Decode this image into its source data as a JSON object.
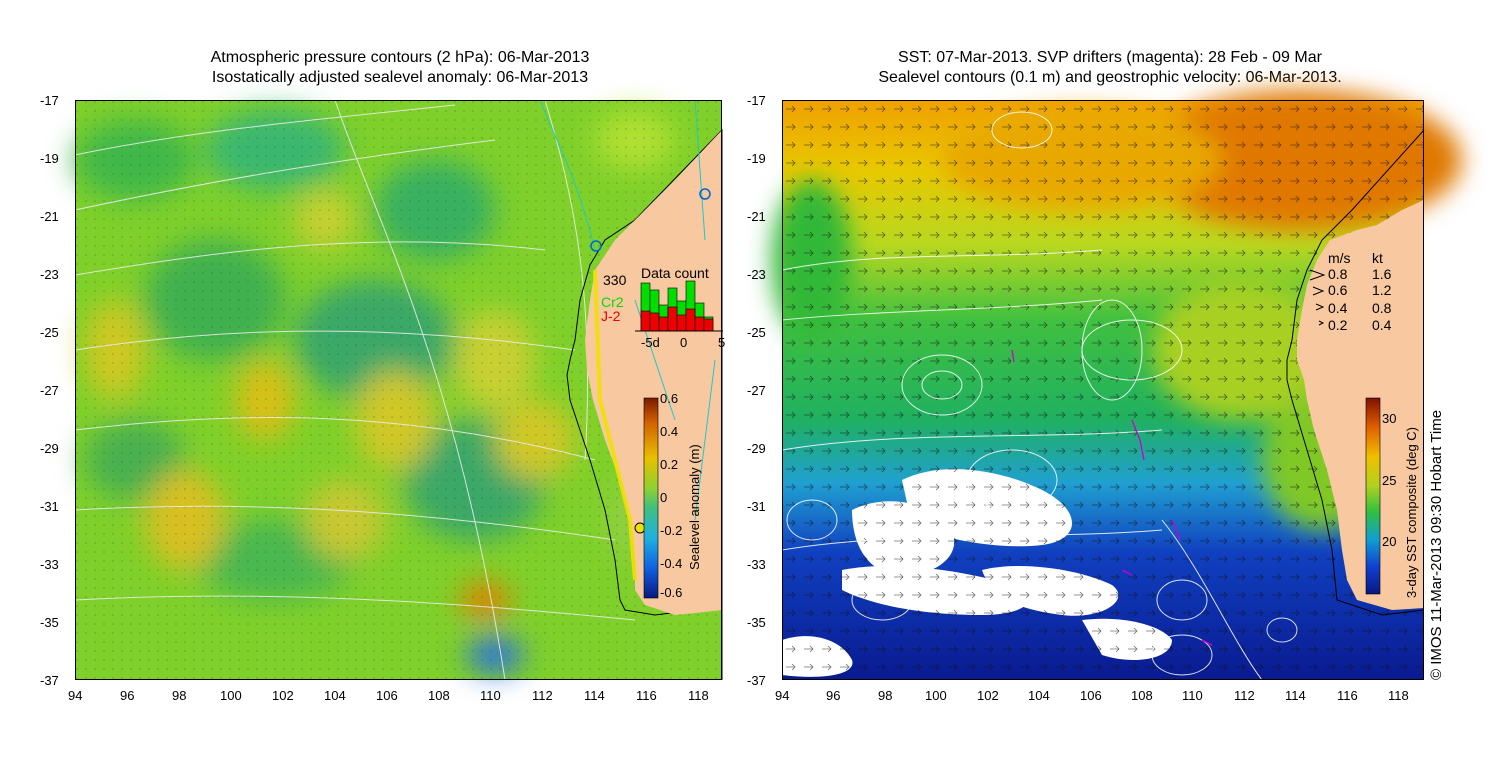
{
  "left_map": {
    "title_line1": "Atmospheric pressure contours (2 hPa): 06-Mar-2013",
    "title_line2": "Isostatically adjusted sealevel anomaly: 06-Mar-2013",
    "count_value": "330",
    "data_count_title": "Data count",
    "sat_cr2": "Cr2",
    "sat_j2": "J-2",
    "count_ticks": [
      "-5d",
      "0",
      "5"
    ],
    "colorbar": {
      "label": "Sealevel anomaly (m)",
      "ticks": [
        "0.6",
        "0.4",
        "0.2",
        "0",
        "-0.2",
        "-0.4",
        "-0.6"
      ]
    },
    "colors": {
      "land": "#f8c8a0",
      "sea_mid": "#7ed321",
      "sea_high": "#e8a800",
      "sea_low": "#1e90ff",
      "contour": "#e8e8e8",
      "cr2": "#00dd00",
      "j2": "#ee0000"
    }
  },
  "right_map": {
    "title_line1": "SST: 07-Mar-2013. SVP drifters (magenta): 28 Feb - 09 Mar",
    "title_line2": "Sealevel contours (0.1 m) and geostrophic velocity: 06-Mar-2013.",
    "speed_legend": {
      "header_ms": "m/s",
      "header_kt": "kt",
      "rows": [
        {
          "ms": "0.8",
          "kt": "1.6"
        },
        {
          "ms": "0.6",
          "kt": "1.2"
        },
        {
          "ms": "0.4",
          "kt": "0.8"
        },
        {
          "ms": "0.2",
          "kt": "0.4"
        }
      ]
    },
    "colorbar": {
      "label": "3-day SST composite (deg C)",
      "ticks": [
        "30",
        "25",
        "20"
      ]
    },
    "colors": {
      "land": "#f8c8a0",
      "warm": "#e88a00",
      "mid": "#30c040",
      "cool": "#0050d0",
      "cloud": "#ffffff"
    }
  },
  "axes": {
    "y_ticks": [
      "-17",
      "-19",
      "-21",
      "-23",
      "-25",
      "-27",
      "-29",
      "-31",
      "-33",
      "-35",
      "-37"
    ],
    "x_ticks": [
      "94",
      "96",
      "98",
      "100",
      "102",
      "104",
      "106",
      "108",
      "110",
      "112",
      "114",
      "116",
      "118"
    ]
  },
  "credit": "© IMOS 11-Mar-2013 09:30 Hobart Time"
}
